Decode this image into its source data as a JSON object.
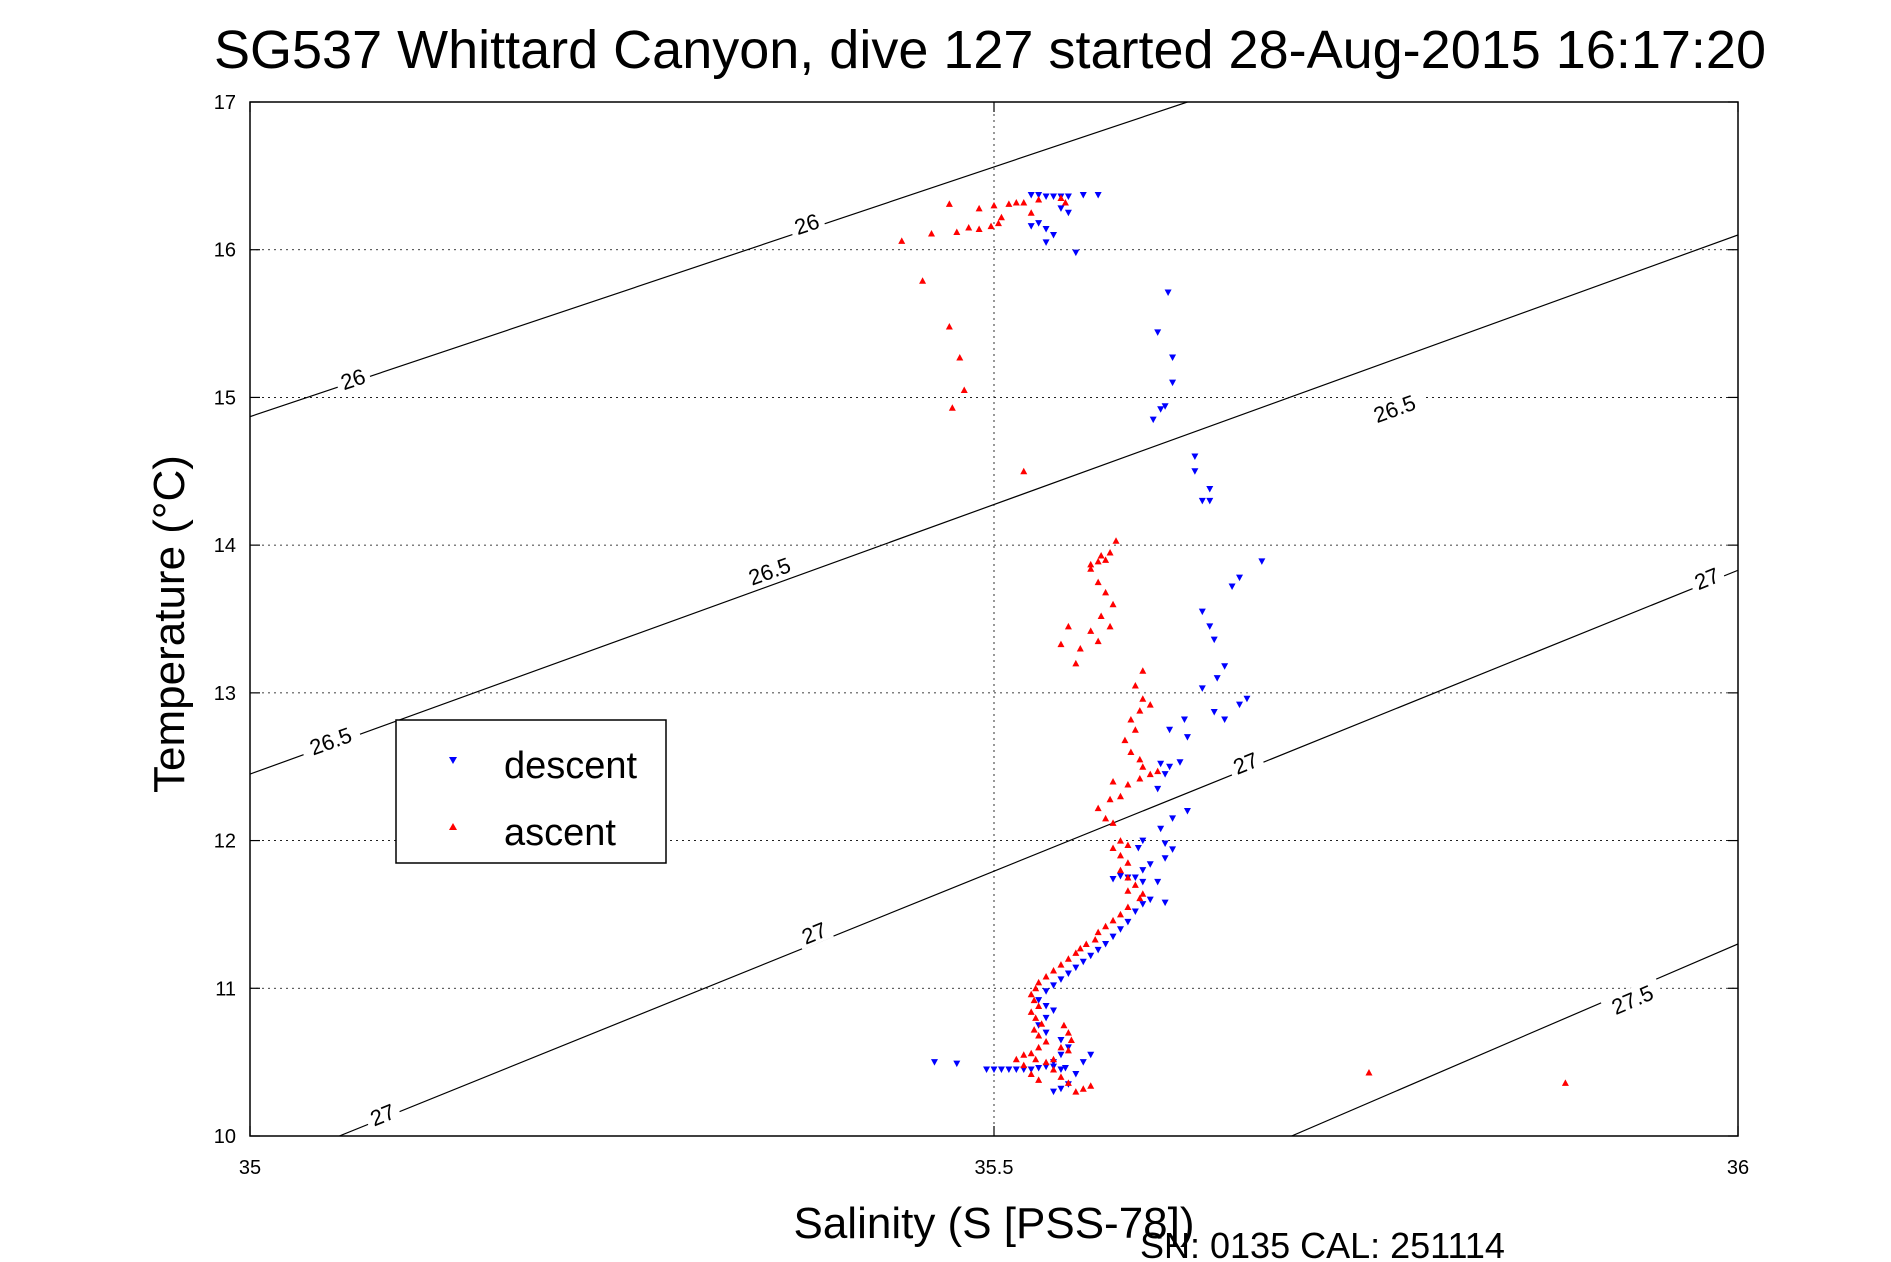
{
  "chart_data": {
    "type": "scatter",
    "title": "SG537 Whittard Canyon, dive 127 started 28-Aug-2015 16:17:20",
    "xlabel": "Salinity (S [PSS-78])",
    "ylabel": "Temperature (°C)",
    "xlim": [
      35,
      36
    ],
    "ylim": [
      10,
      17
    ],
    "xticks": [
      35,
      35.5,
      36
    ],
    "xtick_labels": [
      "35",
      "35.5",
      "36"
    ],
    "yticks": [
      10,
      11,
      12,
      13,
      14,
      15,
      16,
      17
    ],
    "ytick_labels": [
      "10",
      "11",
      "12",
      "13",
      "14",
      "15",
      "16",
      "17"
    ],
    "grid": true,
    "legend_position": "left-middle",
    "footer": "SN: 0135  CAL: 251114",
    "contours": [
      {
        "label": "26",
        "points": [
          [
            35.0,
            14.87
          ],
          [
            35.63,
            17.0
          ]
        ],
        "label_positions": [
          [
            35.07,
            15.1
          ],
          [
            35.375,
            16.15
          ]
        ]
      },
      {
        "label": "26.5",
        "points": [
          [
            35.0,
            12.45
          ],
          [
            36.0,
            16.1
          ]
        ],
        "label_positions": [
          [
            35.055,
            12.65
          ],
          [
            35.35,
            13.8
          ],
          [
            35.77,
            14.9
          ]
        ]
      },
      {
        "label": "27",
        "points": [
          [
            35.06,
            10.0
          ],
          [
            36.0,
            13.83
          ]
        ],
        "label_positions": [
          [
            35.09,
            10.12
          ],
          [
            35.38,
            11.35
          ],
          [
            35.67,
            12.5
          ],
          [
            35.98,
            13.75
          ]
        ]
      },
      {
        "label": "27.5",
        "points": [
          [
            35.7,
            10.0
          ],
          [
            36.0,
            11.3
          ]
        ],
        "label_positions": [
          [
            35.93,
            10.9
          ]
        ]
      }
    ],
    "series": [
      {
        "name": "descent",
        "color": "#0000ff",
        "marker": "triangle-down",
        "points": [
          [
            35.525,
            16.37
          ],
          [
            35.53,
            16.37
          ],
          [
            35.535,
            16.36
          ],
          [
            35.54,
            16.36
          ],
          [
            35.545,
            16.36
          ],
          [
            35.55,
            16.36
          ],
          [
            35.56,
            16.37
          ],
          [
            35.57,
            16.37
          ],
          [
            35.525,
            16.16
          ],
          [
            35.53,
            16.18
          ],
          [
            35.535,
            16.14
          ],
          [
            35.54,
            16.1
          ],
          [
            35.535,
            16.05
          ],
          [
            35.55,
            16.25
          ],
          [
            35.545,
            16.28
          ],
          [
            35.555,
            15.98
          ],
          [
            35.617,
            15.71
          ],
          [
            35.61,
            15.44
          ],
          [
            35.62,
            15.27
          ],
          [
            35.62,
            15.1
          ],
          [
            35.615,
            14.94
          ],
          [
            35.612,
            14.92
          ],
          [
            35.607,
            14.85
          ],
          [
            35.635,
            14.6
          ],
          [
            35.635,
            14.5
          ],
          [
            35.64,
            14.3
          ],
          [
            35.645,
            14.3
          ],
          [
            35.645,
            14.38
          ],
          [
            35.68,
            13.89
          ],
          [
            35.665,
            13.78
          ],
          [
            35.66,
            13.72
          ],
          [
            35.64,
            13.55
          ],
          [
            35.645,
            13.45
          ],
          [
            35.648,
            13.36
          ],
          [
            35.655,
            13.18
          ],
          [
            35.65,
            13.1
          ],
          [
            35.64,
            13.03
          ],
          [
            35.67,
            12.96
          ],
          [
            35.665,
            12.92
          ],
          [
            35.655,
            12.82
          ],
          [
            35.648,
            12.87
          ],
          [
            35.628,
            12.82
          ],
          [
            35.618,
            12.75
          ],
          [
            35.63,
            12.7
          ],
          [
            35.625,
            12.53
          ],
          [
            35.618,
            12.5
          ],
          [
            35.612,
            12.52
          ],
          [
            35.615,
            12.45
          ],
          [
            35.61,
            12.35
          ],
          [
            35.63,
            12.2
          ],
          [
            35.62,
            12.15
          ],
          [
            35.612,
            12.08
          ],
          [
            35.6,
            12.0
          ],
          [
            35.597,
            11.95
          ],
          [
            35.615,
            11.98
          ],
          [
            35.62,
            11.94
          ],
          [
            35.615,
            11.88
          ],
          [
            35.605,
            11.84
          ],
          [
            35.6,
            11.8
          ],
          [
            35.595,
            11.75
          ],
          [
            35.59,
            11.75
          ],
          [
            35.585,
            11.76
          ],
          [
            35.58,
            11.74
          ],
          [
            35.6,
            11.72
          ],
          [
            35.61,
            11.72
          ],
          [
            35.615,
            11.58
          ],
          [
            35.605,
            11.6
          ],
          [
            35.6,
            11.57
          ],
          [
            35.595,
            11.52
          ],
          [
            35.59,
            11.45
          ],
          [
            35.585,
            11.4
          ],
          [
            35.58,
            11.35
          ],
          [
            35.575,
            11.3
          ],
          [
            35.57,
            11.26
          ],
          [
            35.565,
            11.22
          ],
          [
            35.56,
            11.18
          ],
          [
            35.555,
            11.14
          ],
          [
            35.55,
            11.1
          ],
          [
            35.545,
            11.06
          ],
          [
            35.54,
            11.02
          ],
          [
            35.535,
            10.98
          ],
          [
            35.53,
            10.92
          ],
          [
            35.535,
            10.88
          ],
          [
            35.54,
            10.85
          ],
          [
            35.535,
            10.8
          ],
          [
            35.53,
            10.75
          ],
          [
            35.535,
            10.7
          ],
          [
            35.545,
            10.65
          ],
          [
            35.55,
            10.6
          ],
          [
            35.545,
            10.55
          ],
          [
            35.54,
            10.5
          ],
          [
            35.545,
            10.45
          ],
          [
            35.555,
            10.42
          ],
          [
            35.56,
            10.5
          ],
          [
            35.565,
            10.55
          ],
          [
            35.55,
            10.35
          ],
          [
            35.545,
            10.32
          ],
          [
            35.54,
            10.3
          ],
          [
            35.46,
            10.5
          ],
          [
            35.475,
            10.49
          ],
          [
            35.495,
            10.45
          ],
          [
            35.5,
            10.45
          ],
          [
            35.505,
            10.45
          ],
          [
            35.51,
            10.45
          ],
          [
            35.515,
            10.45
          ],
          [
            35.52,
            10.45
          ],
          [
            35.525,
            10.45
          ],
          [
            35.53,
            10.46
          ],
          [
            35.535,
            10.47
          ],
          [
            35.54,
            10.47
          ],
          [
            35.548,
            10.46
          ]
        ]
      },
      {
        "name": "ascent",
        "color": "#ff0000",
        "marker": "triangle-up",
        "points": [
          [
            35.47,
            16.31
          ],
          [
            35.49,
            16.28
          ],
          [
            35.505,
            16.22
          ],
          [
            35.503,
            16.18
          ],
          [
            35.498,
            16.16
          ],
          [
            35.49,
            16.14
          ],
          [
            35.483,
            16.15
          ],
          [
            35.475,
            16.12
          ],
          [
            35.458,
            16.11
          ],
          [
            35.438,
            16.06
          ],
          [
            35.51,
            16.31
          ],
          [
            35.515,
            16.32
          ],
          [
            35.52,
            16.32
          ],
          [
            35.53,
            16.34
          ],
          [
            35.545,
            16.35
          ],
          [
            35.548,
            16.32
          ],
          [
            35.5,
            16.3
          ],
          [
            35.525,
            16.25
          ],
          [
            35.452,
            15.79
          ],
          [
            35.47,
            15.48
          ],
          [
            35.477,
            15.27
          ],
          [
            35.48,
            15.05
          ],
          [
            35.472,
            14.93
          ],
          [
            35.52,
            14.5
          ],
          [
            35.582,
            14.03
          ],
          [
            35.578,
            13.95
          ],
          [
            35.575,
            13.9
          ],
          [
            35.57,
            13.89
          ],
          [
            35.565,
            13.87
          ],
          [
            35.565,
            13.84
          ],
          [
            35.572,
            13.93
          ],
          [
            35.57,
            13.75
          ],
          [
            35.575,
            13.68
          ],
          [
            35.58,
            13.6
          ],
          [
            35.572,
            13.52
          ],
          [
            35.578,
            13.45
          ],
          [
            35.565,
            13.42
          ],
          [
            35.57,
            13.35
          ],
          [
            35.558,
            13.3
          ],
          [
            35.545,
            13.33
          ],
          [
            35.55,
            13.45
          ],
          [
            35.555,
            13.2
          ],
          [
            35.6,
            13.15
          ],
          [
            35.595,
            13.05
          ],
          [
            35.6,
            12.96
          ],
          [
            35.605,
            12.92
          ],
          [
            35.598,
            12.88
          ],
          [
            35.592,
            12.82
          ],
          [
            35.595,
            12.75
          ],
          [
            35.588,
            12.68
          ],
          [
            35.592,
            12.6
          ],
          [
            35.598,
            12.55
          ],
          [
            35.6,
            12.5
          ],
          [
            35.605,
            12.45
          ],
          [
            35.61,
            12.47
          ],
          [
            35.598,
            12.42
          ],
          [
            35.59,
            12.38
          ],
          [
            35.58,
            12.4
          ],
          [
            35.585,
            12.3
          ],
          [
            35.578,
            12.28
          ],
          [
            35.57,
            12.22
          ],
          [
            35.575,
            12.15
          ],
          [
            35.58,
            12.12
          ],
          [
            35.585,
            12.0
          ],
          [
            35.59,
            11.97
          ],
          [
            35.58,
            11.95
          ],
          [
            35.585,
            11.9
          ],
          [
            35.59,
            11.85
          ],
          [
            35.585,
            11.8
          ],
          [
            35.59,
            11.75
          ],
          [
            35.595,
            11.7
          ],
          [
            35.59,
            11.66
          ],
          [
            35.6,
            11.64
          ],
          [
            35.598,
            11.61
          ],
          [
            35.59,
            11.55
          ],
          [
            35.585,
            11.5
          ],
          [
            35.58,
            11.46
          ],
          [
            35.575,
            11.42
          ],
          [
            35.57,
            11.38
          ],
          [
            35.568,
            11.33
          ],
          [
            35.562,
            11.3
          ],
          [
            35.558,
            11.27
          ],
          [
            35.555,
            11.24
          ],
          [
            35.55,
            11.2
          ],
          [
            35.545,
            11.16
          ],
          [
            35.54,
            11.12
          ],
          [
            35.535,
            11.08
          ],
          [
            35.53,
            11.04
          ],
          [
            35.528,
            11.0
          ],
          [
            35.525,
            10.96
          ],
          [
            35.527,
            10.92
          ],
          [
            35.53,
            10.88
          ],
          [
            35.525,
            10.84
          ],
          [
            35.528,
            10.8
          ],
          [
            35.532,
            10.76
          ],
          [
            35.527,
            10.72
          ],
          [
            35.53,
            10.68
          ],
          [
            35.535,
            10.64
          ],
          [
            35.53,
            10.6
          ],
          [
            35.525,
            10.56
          ],
          [
            35.528,
            10.52
          ],
          [
            35.535,
            10.5
          ],
          [
            35.54,
            10.45
          ],
          [
            35.545,
            10.4
          ],
          [
            35.55,
            10.36
          ],
          [
            35.555,
            10.3
          ],
          [
            35.56,
            10.32
          ],
          [
            35.565,
            10.34
          ],
          [
            35.55,
            10.58
          ],
          [
            35.545,
            10.6
          ],
          [
            35.54,
            10.52
          ],
          [
            35.52,
            10.55
          ],
          [
            35.515,
            10.52
          ],
          [
            35.52,
            10.48
          ],
          [
            35.525,
            10.42
          ],
          [
            35.53,
            10.38
          ],
          [
            35.55,
            10.7
          ],
          [
            35.552,
            10.65
          ],
          [
            35.547,
            10.75
          ],
          [
            35.752,
            10.43
          ],
          [
            35.884,
            10.36
          ]
        ]
      }
    ]
  }
}
